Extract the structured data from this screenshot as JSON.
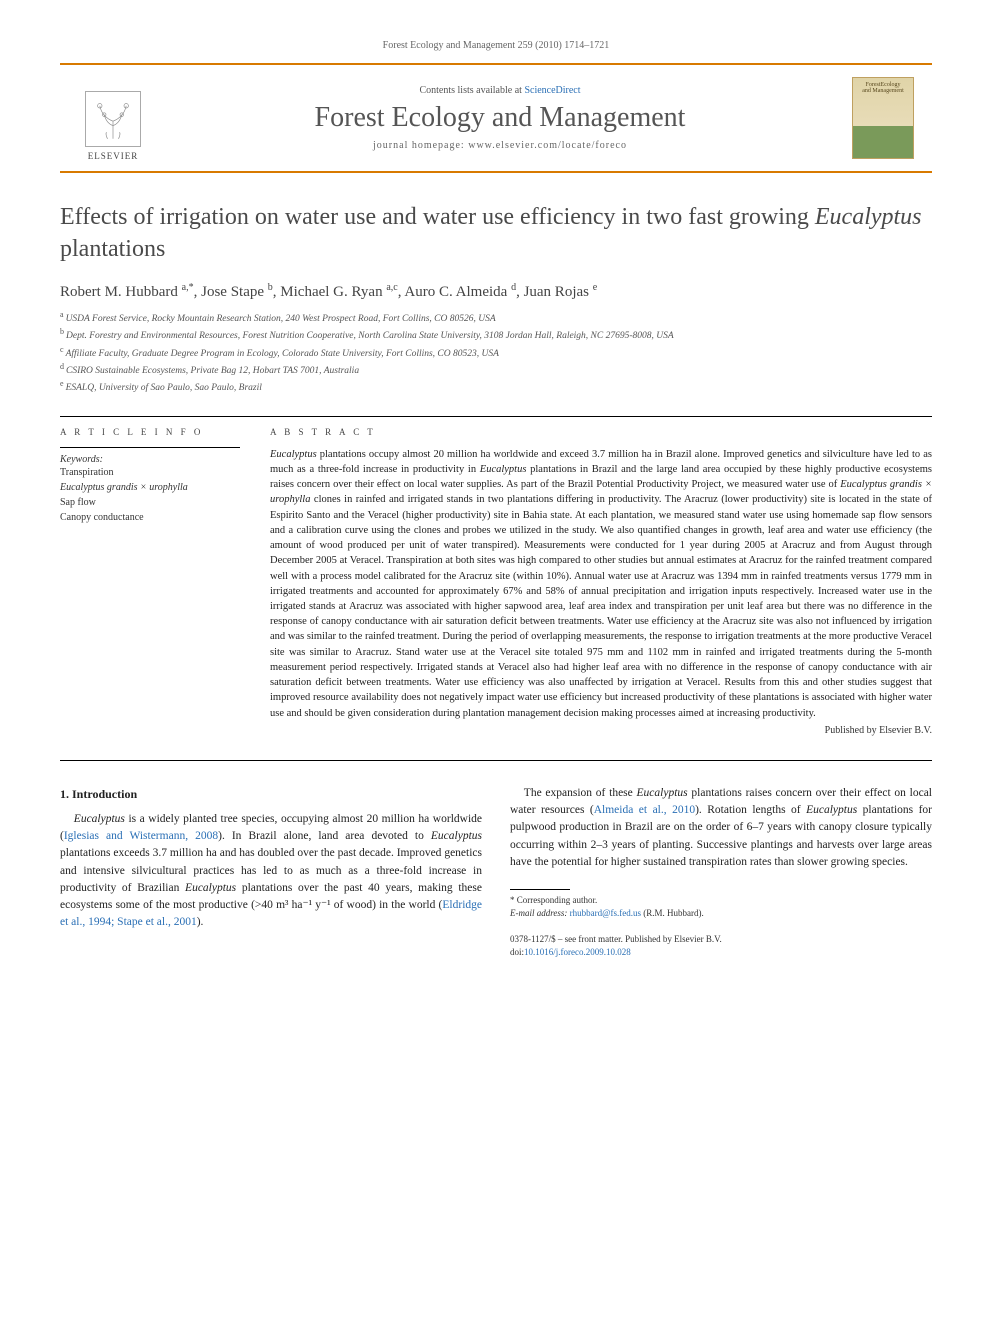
{
  "running_head": "Forest Ecology and Management 259 (2010) 1714–1721",
  "header": {
    "contents_prefix": "Contents lists available at ",
    "contents_link": "ScienceDirect",
    "journal": "Forest Ecology and Management",
    "homepage_label": "journal homepage: ",
    "homepage_url": "www.elsevier.com/locate/foreco",
    "publisher_name": "ELSEVIER",
    "cover_label_top": "ForestEcology",
    "cover_label_bot": "and Management"
  },
  "title_pre": "Effects of irrigation on water use and water use efficiency in two fast growing ",
  "title_species": "Eucalyptus",
  "title_post": " plantations",
  "authors_line": "Robert M. Hubbard a,*, Jose Stape b, Michael G. Ryan a,c, Auro C. Almeida d, Juan Rojas e",
  "authors": [
    {
      "name": "Robert M. Hubbard",
      "sup": "a,*"
    },
    {
      "name": "Jose Stape",
      "sup": "b"
    },
    {
      "name": "Michael G. Ryan",
      "sup": "a,c"
    },
    {
      "name": "Auro C. Almeida",
      "sup": "d"
    },
    {
      "name": "Juan Rojas",
      "sup": "e"
    }
  ],
  "affiliations": [
    {
      "sup": "a",
      "text": "USDA Forest Service, Rocky Mountain Research Station, 240 West Prospect Road, Fort Collins, CO 80526, USA"
    },
    {
      "sup": "b",
      "text": "Dept. Forestry and Environmental Resources, Forest Nutrition Cooperative, North Carolina State University, 3108 Jordan Hall, Raleigh, NC 27695-8008, USA"
    },
    {
      "sup": "c",
      "text": "Affiliate Faculty, Graduate Degree Program in Ecology, Colorado State University, Fort Collins, CO 80523, USA"
    },
    {
      "sup": "d",
      "text": "CSIRO Sustainable Ecosystems, Private Bag 12, Hobart TAS 7001, Australia"
    },
    {
      "sup": "e",
      "text": "ESALQ, University of Sao Paulo, Sao Paulo, Brazil"
    }
  ],
  "labels": {
    "article_info": "A R T I C L E   I N F O",
    "abstract": "A B S T R A C T",
    "keywords": "Keywords:"
  },
  "keywords": [
    "Transpiration",
    "Eucalyptus grandis × urophylla",
    "Sap flow",
    "Canopy conductance"
  ],
  "abstract_parts": [
    {
      "it": true,
      "t": "Eucalyptus"
    },
    {
      "it": false,
      "t": " plantations occupy almost 20 million ha worldwide and exceed 3.7 million ha in Brazil alone. Improved genetics and silviculture have led to as much as a three-fold increase in productivity in "
    },
    {
      "it": true,
      "t": "Eucalyptus"
    },
    {
      "it": false,
      "t": " plantations in Brazil and the large land area occupied by these highly productive ecosystems raises concern over their effect on local water supplies. As part of the Brazil Potential Productivity Project, we measured water use of "
    },
    {
      "it": true,
      "t": "Eucalyptus grandis × urophylla"
    },
    {
      "it": false,
      "t": " clones in rainfed and irrigated stands in two plantations differing in productivity. The Aracruz (lower productivity) site is located in the state of Espirito Santo and the Veracel (higher productivity) site in Bahia state. At each plantation, we measured stand water use using homemade sap flow sensors and a calibration curve using the clones and probes we utilized in the study. We also quantified changes in growth, leaf area and water use efficiency (the amount of wood produced per unit of water transpired). Measurements were conducted for 1 year during 2005 at Aracruz and from August through December 2005 at Veracel. Transpiration at both sites was high compared to other studies but annual estimates at Aracruz for the rainfed treatment compared well with a process model calibrated for the Aracruz site (within 10%). Annual water use at Aracruz was 1394 mm in rainfed treatments versus 1779 mm in irrigated treatments and accounted for approximately 67% and 58% of annual precipitation and irrigation inputs respectively. Increased water use in the irrigated stands at Aracruz was associated with higher sapwood area, leaf area index and transpiration per unit leaf area but there was no difference in the response of canopy conductance with air saturation deficit between treatments. Water use efficiency at the Aracruz site was also not influenced by irrigation and was similar to the rainfed treatment. During the period of overlapping measurements, the response to irrigation treatments at the more productive Veracel site was similar to Aracruz. Stand water use at the Veracel site totaled 975 mm and 1102 mm in rainfed and irrigated treatments during the 5-month measurement period respectively. Irrigated stands at Veracel also had higher leaf area with no difference in the response of canopy conductance with air saturation deficit between treatments. Water use efficiency was also unaffected by irrigation at Veracel. Results from this and other studies suggest that improved resource availability does not negatively impact water use efficiency but increased productivity of these plantations is associated with higher water use and should be given consideration during plantation management decision making processes aimed at increasing productivity."
    }
  ],
  "published_by": "Published by Elsevier B.V.",
  "intro_heading": "1. Introduction",
  "body_p1_parts": [
    {
      "it": true,
      "t": "Eucalyptus"
    },
    {
      "it": false,
      "t": " is a widely planted tree species, occupying almost 20 million ha worldwide ("
    },
    {
      "link": true,
      "t": "Iglesias and Wistermann, 2008"
    },
    {
      "it": false,
      "t": "). In Brazil alone, land area devoted to "
    },
    {
      "it": true,
      "t": "Eucalyptus"
    },
    {
      "it": false,
      "t": " plantations exceeds 3.7 million ha and has doubled over the past decade. Improved genetics and intensive silvicultural practices has led to as much as a three-fold increase in productivity of Brazilian "
    },
    {
      "it": true,
      "t": "Eucalyptus"
    },
    {
      "it": false,
      "t": " plantations over the past 40 years, making these ecosystems some of the most productive (>40 m³ ha⁻¹ y⁻¹ of wood) in the world ("
    },
    {
      "link": true,
      "t": "Eldridge et al., 1994; Stape et al., 2001"
    },
    {
      "it": false,
      "t": ")."
    }
  ],
  "body_p2_parts": [
    {
      "it": false,
      "t": "The expansion of these "
    },
    {
      "it": true,
      "t": "Eucalyptus"
    },
    {
      "it": false,
      "t": " plantations raises concern over their effect on local water resources ("
    },
    {
      "link": true,
      "t": "Almeida et al., 2010"
    },
    {
      "it": false,
      "t": "). Rotation lengths of "
    },
    {
      "it": true,
      "t": "Eucalyptus"
    },
    {
      "it": false,
      "t": " plantations for pulpwood production in Brazil are on the order of 6–7 years with canopy closure typically occurring within 2–3 years of planting. Successive plantings and harvests over large areas have the potential for higher sustained transpiration rates than slower growing species."
    }
  ],
  "corr_label": "* Corresponding author.",
  "email_label": "E-mail address: ",
  "email_value": "rhubbard@fs.fed.us",
  "email_tail": " (R.M. Hubbard).",
  "bottom1": "0378-1127/$ – see front matter. Published by Elsevier B.V.",
  "doi_label": "doi:",
  "doi_value": "10.1016/j.foreco.2009.10.028",
  "colors": {
    "rule": "#d87a00",
    "link": "#2a6fb5",
    "text": "#333333",
    "bg": "#ffffff"
  },
  "typography": {
    "title_fontsize": 24,
    "journal_fontsize": 28,
    "body_fontsize": 11.5,
    "abstract_fontsize": 10.5,
    "affil_fontsize": 9.5
  }
}
